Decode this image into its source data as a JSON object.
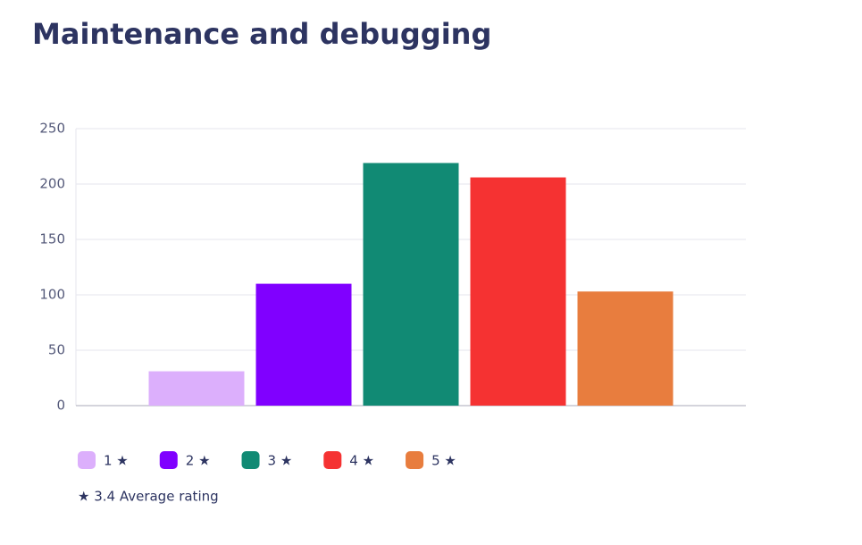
{
  "chart_data": {
    "type": "grouped_bar",
    "title": "Maintenance and debugging",
    "categories": [
      null
    ],
    "series": [
      {
        "name": "1 ★",
        "color": "#dcaffc",
        "values": [
          31
        ]
      },
      {
        "name": "2 ★",
        "color": "#8000ff",
        "values": [
          110
        ]
      },
      {
        "name": "3 ★",
        "color": "#118a74",
        "values": [
          219
        ]
      },
      {
        "name": "4 ★",
        "color": "#f53232",
        "values": [
          206
        ]
      },
      {
        "name": "5 ★",
        "color": "#e87d3e",
        "values": [
          103
        ]
      }
    ],
    "ylim": [
      0,
      250
    ],
    "yticks": [
      0,
      50,
      100,
      150,
      200,
      250
    ],
    "grid": true,
    "note": "★ 3.4 Average rating"
  }
}
